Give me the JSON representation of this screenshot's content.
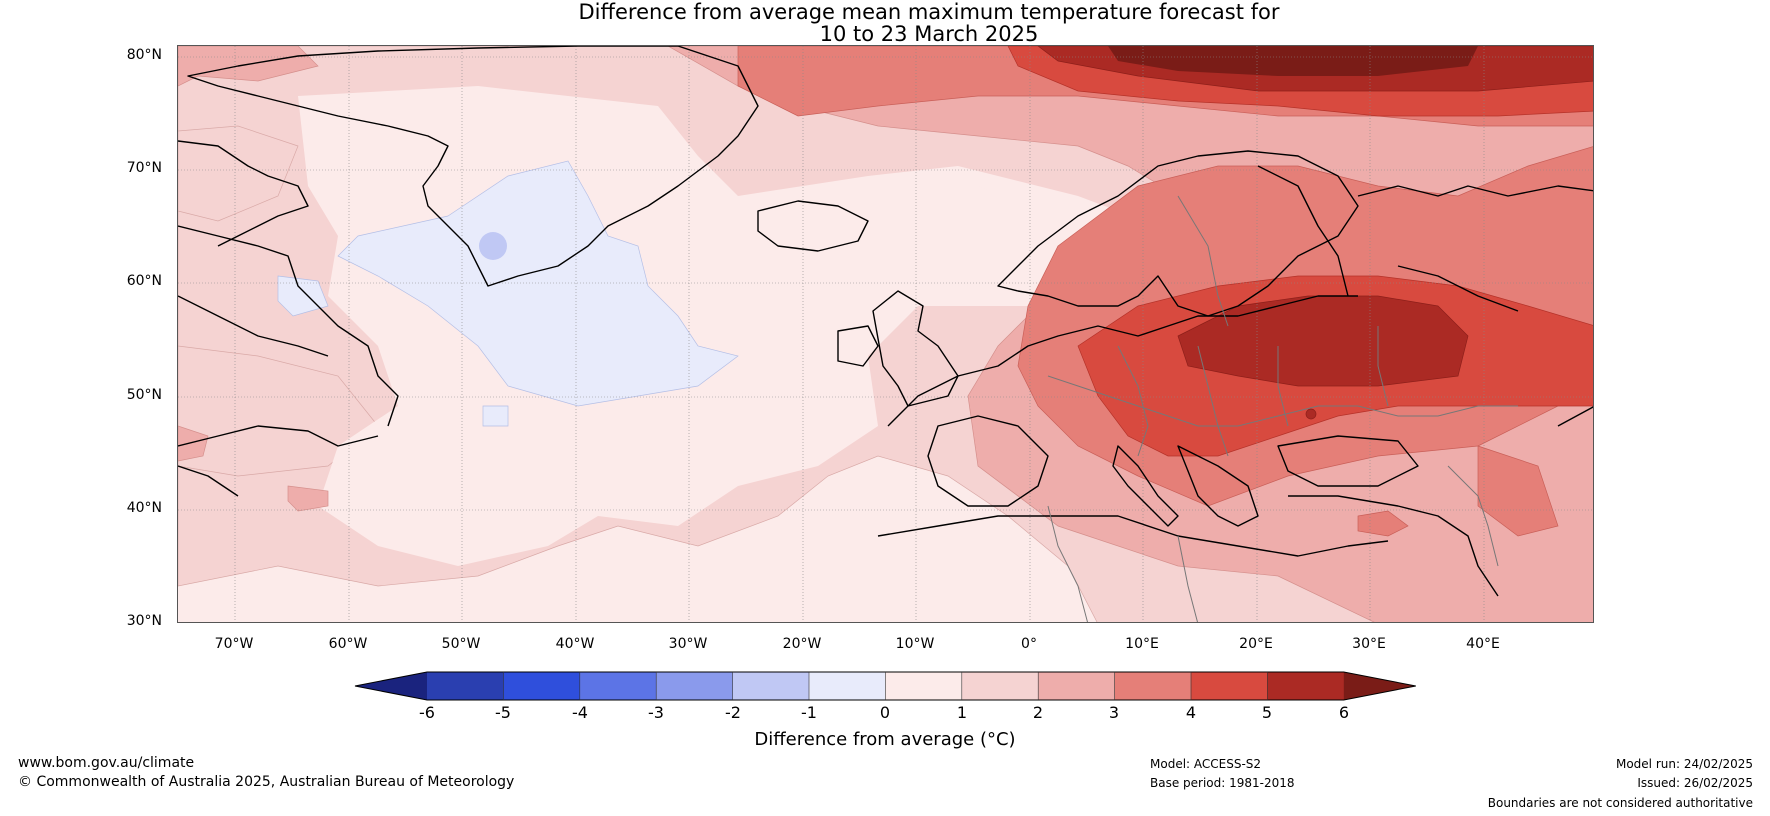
{
  "title": {
    "line1": "Difference from average mean maximum temperature forecast for",
    "line2": "10 to 23 March 2025"
  },
  "map": {
    "lat_labels": [
      "80°N",
      "70°N",
      "60°N",
      "50°N",
      "40°N",
      "30°N"
    ],
    "lon_labels": [
      "70°W",
      "60°W",
      "50°W",
      "40°W",
      "30°W",
      "20°W",
      "10°W",
      "0°",
      "10°E",
      "20°E",
      "30°E",
      "40°E"
    ],
    "extent": {
      "lon_min": -75,
      "lon_max": 50,
      "lat_min": 30,
      "lat_max": 81
    },
    "highlights": [
      "Strong warm anomaly over eastern Europe / western Russia",
      "Weak cool anomaly south of Greenland"
    ]
  },
  "colorbar": {
    "label": "Difference from average (°C)",
    "ticks": [
      "-6",
      "-5",
      "-4",
      "-3",
      "-2",
      "-1",
      "0",
      "1",
      "2",
      "3",
      "4",
      "5",
      "6"
    ],
    "colors": {
      "below_min": "#1a237e",
      "b_6_5": "#2a3fb0",
      "b_5_4": "#2f4fdc",
      "b_4_3": "#5c74e6",
      "b_3_2": "#8a9aec",
      "b_2_1": "#c0c8f4",
      "b_1_0": "#e8ebfb",
      "b0_1": "#fcebea",
      "b1_2": "#f5d3d2",
      "b2_3": "#eeadab",
      "b3_4": "#e57f78",
      "b4_5": "#d84a3f",
      "b5_6": "#ab2a24",
      "above_max": "#7a1c17"
    }
  },
  "footer": {
    "url": "www.bom.gov.au/climate",
    "copyright": "© Commonwealth of Australia 2025, Australian Bureau of Meteorology",
    "model": "Model: ACCESS-S2",
    "base_period": "Base period: 1981-2018",
    "model_run": "Model run: 24/02/2025",
    "issued": "Issued: 26/02/2025",
    "disclaimer": "Boundaries are not considered authoritative"
  }
}
